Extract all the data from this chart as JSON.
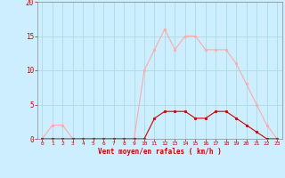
{
  "x": [
    0,
    1,
    2,
    3,
    4,
    5,
    6,
    7,
    8,
    9,
    10,
    11,
    12,
    13,
    14,
    15,
    16,
    17,
    18,
    19,
    20,
    21,
    22,
    23
  ],
  "y_rafales": [
    0,
    2,
    2,
    0,
    0,
    0,
    0,
    0,
    0,
    0,
    10,
    13,
    16,
    13,
    15,
    15,
    13,
    13,
    13,
    11,
    8,
    5,
    2,
    0
  ],
  "y_moyen": [
    0,
    0,
    0,
    0,
    0,
    0,
    0,
    0,
    0,
    0,
    0,
    3,
    4,
    4,
    4,
    3,
    3,
    4,
    4,
    3,
    2,
    1,
    0,
    0
  ],
  "xlabel": "Vent moyen/en rafales ( km/h )",
  "ylim": [
    0,
    20
  ],
  "xlim": [
    -0.5,
    23.5
  ],
  "yticks": [
    0,
    5,
    10,
    15,
    20
  ],
  "xticks": [
    0,
    1,
    2,
    3,
    4,
    5,
    6,
    7,
    8,
    9,
    10,
    11,
    12,
    13,
    14,
    15,
    16,
    17,
    18,
    19,
    20,
    21,
    22,
    23
  ],
  "bg_color": "#cceeff",
  "line_color_rafales": "#ffaaaa",
  "line_color_moyen": "#cc0000",
  "grid_color": "#aadddd",
  "tick_color": "#cc0000",
  "label_color": "#cc0000",
  "spine_color": "#888888"
}
